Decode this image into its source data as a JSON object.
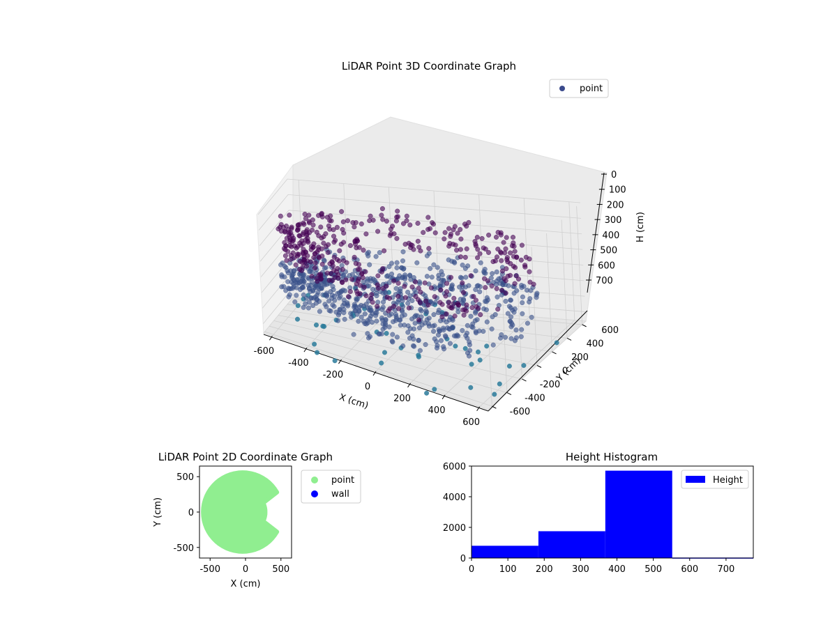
{
  "chart_data": [
    {
      "type": "scatter",
      "title": "LiDAR Point 3D Coordinate Graph",
      "xlabel": "X (cm)",
      "ylabel": "Y (cm)",
      "zlabel": "H (cm)",
      "xticks": [
        "-600",
        "-400",
        "-200",
        "0",
        "200",
        "400",
        "600"
      ],
      "yticks": [
        "-600",
        "-400",
        "-200",
        "0",
        "200",
        "400",
        "600"
      ],
      "zticks": [
        "0",
        "100",
        "200",
        "300",
        "400",
        "500",
        "600",
        "700"
      ],
      "xlim": [
        -650,
        650
      ],
      "ylim": [
        -650,
        650
      ],
      "zlim": [
        0,
        760
      ],
      "z_inverted": true,
      "legend": {
        "entries": [
          "point"
        ],
        "position": "top-right"
      },
      "colormap": [
        "#440154",
        "#3b528b",
        "#21918c"
      ],
      "series": [
        {
          "name": "point",
          "shape": "ring-shaped room scan, radius approx 500-650 cm, heights approx 100-600 cm, plus a central floor patch at approx 480 cm and scattered outliers",
          "x": [
            -600,
            -450,
            -300,
            -150,
            0,
            150,
            300,
            450,
            600,
            0,
            -200,
            200
          ],
          "y": [
            0,
            400,
            550,
            600,
            620,
            580,
            500,
            350,
            0,
            -600,
            -550,
            -550
          ],
          "z": [
            480,
            400,
            350,
            300,
            280,
            300,
            350,
            420,
            500,
            560,
            540,
            540
          ]
        }
      ]
    },
    {
      "type": "scatter",
      "title": "LiDAR Point 2D Coordinate Graph",
      "xlabel": "X (cm)",
      "ylabel": "Y (cm)",
      "xticks": [
        "-500",
        "0",
        "500"
      ],
      "yticks": [
        "-500",
        "0",
        "500"
      ],
      "xlim": [
        -650,
        650
      ],
      "ylim": [
        -650,
        650
      ],
      "legend": {
        "entries": [
          "point",
          "wall"
        ],
        "position": "outside-right"
      },
      "series": [
        {
          "name": "point",
          "color": "#90ee90"
        },
        {
          "name": "wall",
          "color": "#0000ff"
        }
      ]
    },
    {
      "type": "bar",
      "title": "Height Histogram",
      "xticks": [
        "0",
        "100",
        "200",
        "300",
        "400",
        "500",
        "600",
        "700"
      ],
      "yticks": [
        "0",
        "2000",
        "4000",
        "6000"
      ],
      "xlim": [
        0,
        775
      ],
      "ylim": [
        0,
        6000
      ],
      "legend": {
        "entries": [
          "Height"
        ],
        "position": "top-right"
      },
      "series": [
        {
          "name": "Height",
          "color": "#0000ff",
          "bin_edges": [
            0,
            184,
            368,
            552,
            775
          ],
          "values": [
            800,
            1750,
            5700,
            30
          ]
        }
      ]
    }
  ]
}
